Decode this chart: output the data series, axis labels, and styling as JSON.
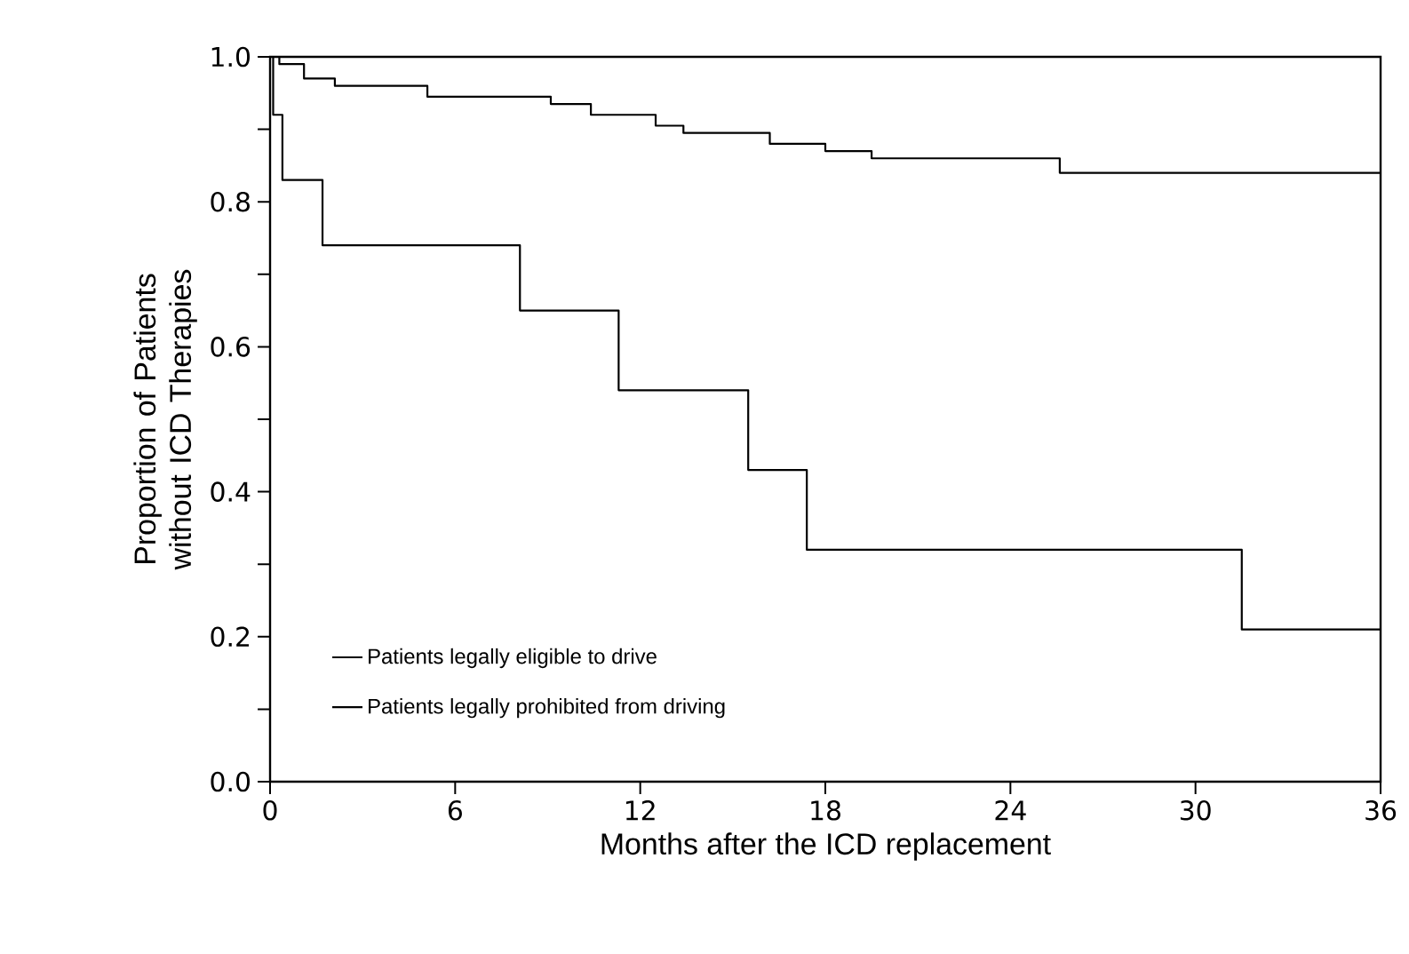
{
  "chart_data": {
    "type": "step",
    "xlabel": "Months after the ICD replacement",
    "ylabel": "Proportion of Patients without ICD Therapies",
    "xlim": [
      0,
      36
    ],
    "ylim": [
      0,
      1
    ],
    "xticks": [
      0,
      6,
      12,
      18,
      24,
      30,
      36
    ],
    "yticks": [
      {
        "value": 0,
        "label": "0.0"
      },
      {
        "value": 0.1,
        "label": null
      },
      {
        "value": 0.2,
        "label": "0.2"
      },
      {
        "value": 0.3,
        "label": null
      },
      {
        "value": 0.4,
        "label": "0.4"
      },
      {
        "value": 0.5,
        "label": null
      },
      {
        "value": 0.6,
        "label": "0.6"
      },
      {
        "value": 0.7,
        "label": null
      },
      {
        "value": 0.8,
        "label": "0.8"
      },
      {
        "value": 0.9,
        "label": null
      },
      {
        "value": 1,
        "label": "1.0"
      }
    ],
    "grid": false,
    "legend": "bottom left",
    "marker": "none",
    "line_style": "solid",
    "series": [
      {
        "name": "Patients legally eligible to drive",
        "color": "#000000",
        "x": [
          0,
          0.3,
          1.1,
          2.1,
          5.1,
          9.1,
          10.4,
          12.5,
          13.4,
          16.2,
          18.0,
          19.5,
          25.6,
          36
        ],
        "values": [
          1.0,
          0.99,
          0.97,
          0.96,
          0.945,
          0.935,
          0.92,
          0.905,
          0.895,
          0.88,
          0.87,
          0.86,
          0.84,
          0.84
        ]
      },
      {
        "name": "Patients legally prohibited from driving",
        "color": "#000000",
        "x": [
          0,
          0.1,
          0.4,
          1.7,
          8.1,
          11.3,
          15.5,
          17.4,
          31.5,
          36
        ],
        "values": [
          1.0,
          0.92,
          0.83,
          0.74,
          0.65,
          0.54,
          0.43,
          0.32,
          0.21,
          0.21
        ]
      }
    ]
  }
}
